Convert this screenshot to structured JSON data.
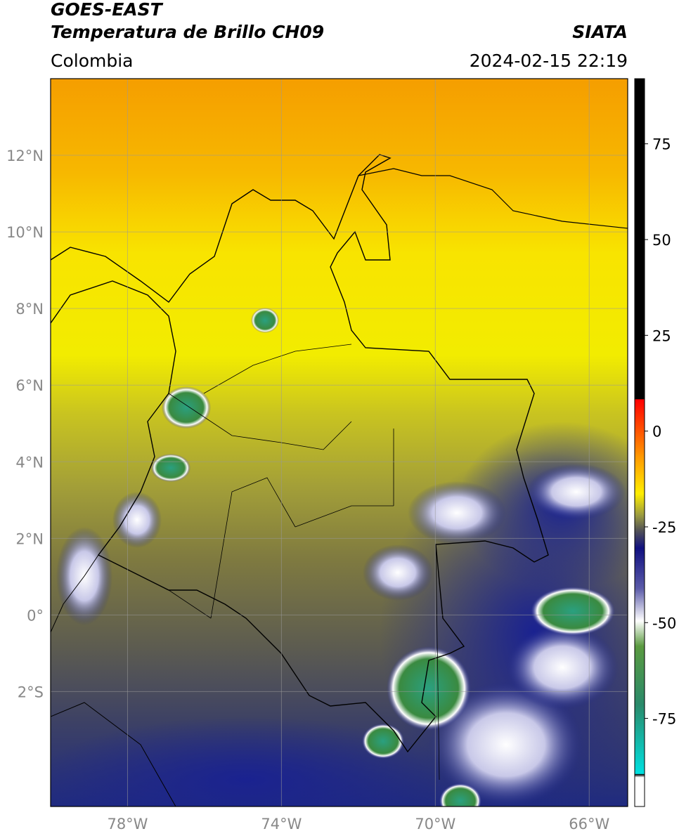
{
  "header": {
    "title": "GOES-EAST",
    "subtitle": "Temperatura de Brillo CH09",
    "source": "SIATA",
    "region": "Colombia",
    "datetime": "2024-02-15 22:19"
  },
  "map": {
    "lonlim": [
      -80,
      -65
    ],
    "latlim": [
      -5,
      14
    ],
    "lat_ticks": [
      {
        "value": 12,
        "label": "12°N"
      },
      {
        "value": 10,
        "label": "10°N"
      },
      {
        "value": 8,
        "label": "8°N"
      },
      {
        "value": 6,
        "label": "6°N"
      },
      {
        "value": 4,
        "label": "4°N"
      },
      {
        "value": 2,
        "label": "2°N"
      },
      {
        "value": 0,
        "label": "0°"
      },
      {
        "value": -2,
        "label": "2°S"
      }
    ],
    "lon_ticks": [
      {
        "value": -78,
        "label": "78°W"
      },
      {
        "value": -74,
        "label": "74°W"
      },
      {
        "value": -70,
        "label": "70°W"
      },
      {
        "value": -66,
        "label": "66°W"
      }
    ]
  },
  "colorbar": {
    "lim": [
      -98,
      92
    ],
    "ticks": [
      75,
      50,
      25,
      0,
      -25,
      -50,
      -75
    ]
  }
}
